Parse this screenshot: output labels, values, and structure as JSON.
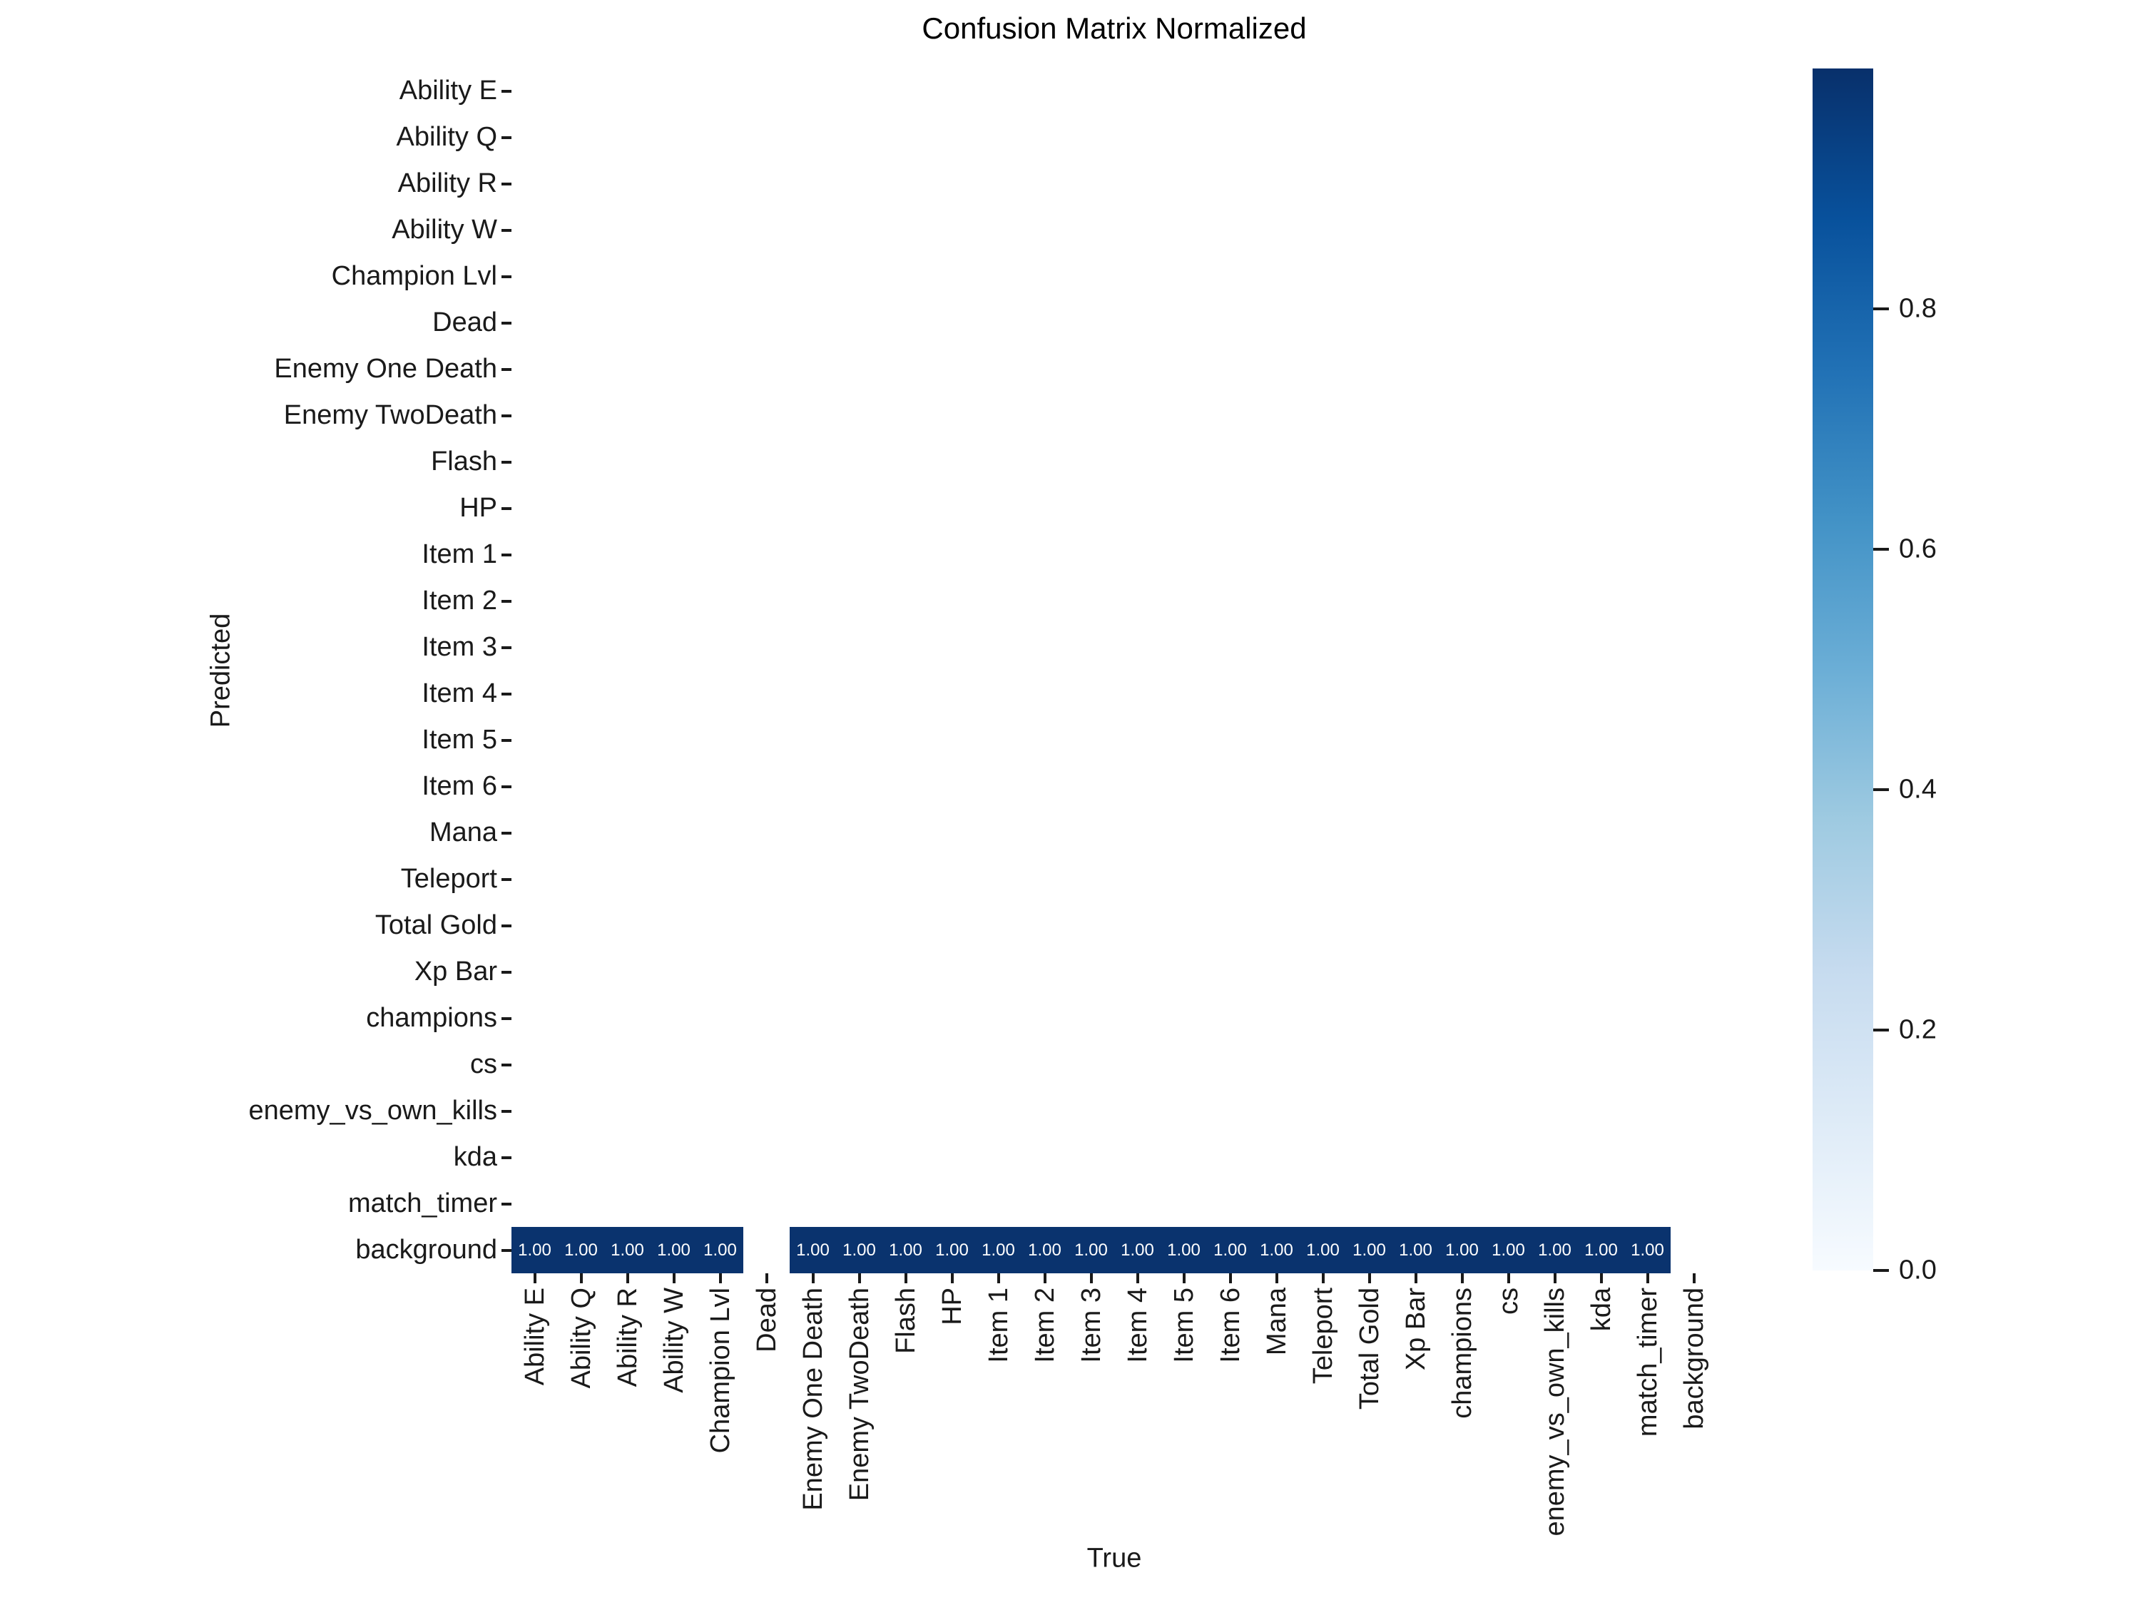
{
  "title": "Confusion Matrix Normalized",
  "axes": {
    "xlabel": "True",
    "ylabel": "Predicted"
  },
  "colors": {
    "cell_fill": "#0a336e",
    "cell_text": "#ffffff",
    "tick_mark": "#1a1a1a",
    "axis_text": "#1a1a1a",
    "title_text": "#000000"
  },
  "chart_data": {
    "type": "heatmap",
    "title": "Confusion Matrix Normalized",
    "xlabel": "True",
    "ylabel": "Predicted",
    "labels": [
      "Ability E",
      "Ability Q",
      "Ability R",
      "Ability W",
      "Champion Lvl",
      "Dead",
      "Enemy One Death",
      "Enemy TwoDeath",
      "Flash",
      "HP",
      "Item 1",
      "Item 2",
      "Item 3",
      "Item 4",
      "Item 5",
      "Item 6",
      "Mana",
      "Teleport",
      "Total Gold",
      "Xp Bar",
      "champions",
      "cs",
      "enemy_vs_own_kills",
      "kda",
      "match_timer",
      "background"
    ],
    "annotated_row": "background",
    "background_row_values": [
      1.0,
      1.0,
      1.0,
      1.0,
      1.0,
      null,
      1.0,
      1.0,
      1.0,
      1.0,
      1.0,
      1.0,
      1.0,
      1.0,
      1.0,
      1.0,
      1.0,
      1.0,
      1.0,
      1.0,
      1.0,
      1.0,
      1.0,
      1.0,
      1.0,
      null
    ],
    "value_format_decimals": 2,
    "grid": false,
    "colormap": "Blues",
    "colormap_stops": [
      "#f7fbff",
      "#deebf7",
      "#c6dbef",
      "#9ecae1",
      "#6baed6",
      "#4292c6",
      "#2171b5",
      "#08519c",
      "#08306b"
    ],
    "vmin": 0.0,
    "vmax": 1.0,
    "colorbar_ticks": [
      0.0,
      0.2,
      0.4,
      0.6,
      0.8
    ],
    "colorbar_position": "right"
  }
}
